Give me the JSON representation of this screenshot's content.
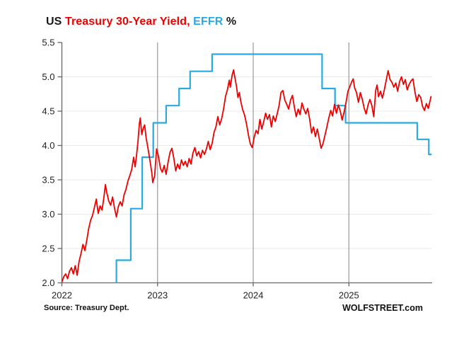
{
  "title": {
    "segments": [
      {
        "text": "US ",
        "color_key": "text"
      },
      {
        "text": "Treasury 30-Year Yield,",
        "color_key": "red"
      },
      {
        "text": " EFFR",
        "color_key": "blue"
      },
      {
        "text": " %",
        "color_key": "text"
      }
    ],
    "full_text": "US Treasury 30-Year Yield, EFFR %"
  },
  "footer": {
    "source": "Source: Treasury Dept.",
    "branding": "WOLFSTREET.com"
  },
  "colors": {
    "red": "#ec0000",
    "blue": "#29aae1",
    "text": "#1a1a1a",
    "axis": "#666666",
    "year_grid": "#999999",
    "h_grid": "#e8e8e8",
    "tick_label": "#222222"
  },
  "chart_data": {
    "type": "line",
    "title": "US Treasury 30-Year Yield, EFFR %",
    "xlabel": "",
    "ylabel": "",
    "x_range": [
      2022.0,
      2025.87
    ],
    "y_range": [
      2.0,
      5.5
    ],
    "x_ticks": [
      2022,
      2023,
      2024,
      2025
    ],
    "y_ticks": [
      2.0,
      2.5,
      3.0,
      3.5,
      4.0,
      4.5,
      5.0,
      5.5
    ],
    "grid": {
      "horizontal": true,
      "vertical_years": [
        2023,
        2024,
        2025
      ],
      "legend": "none"
    },
    "series": [
      {
        "name": "EFFR",
        "color_key": "blue",
        "line_width": 2.2,
        "style": "step-vertices",
        "points": [
          [
            2022.57,
            1.58
          ],
          [
            2022.57,
            2.33
          ],
          [
            2022.72,
            2.33
          ],
          [
            2022.72,
            3.08
          ],
          [
            2022.84,
            3.08
          ],
          [
            2022.84,
            3.83
          ],
          [
            2022.955,
            3.83
          ],
          [
            2022.955,
            4.33
          ],
          [
            2023.09,
            4.33
          ],
          [
            2023.09,
            4.58
          ],
          [
            2023.225,
            4.58
          ],
          [
            2023.225,
            4.83
          ],
          [
            2023.34,
            4.83
          ],
          [
            2023.34,
            5.08
          ],
          [
            2023.57,
            5.08
          ],
          [
            2023.57,
            5.33
          ],
          [
            2024.72,
            5.33
          ],
          [
            2024.72,
            4.83
          ],
          [
            2024.855,
            4.83
          ],
          [
            2024.855,
            4.58
          ],
          [
            2024.965,
            4.58
          ],
          [
            2024.965,
            4.33
          ],
          [
            2025.715,
            4.33
          ],
          [
            2025.715,
            4.09
          ],
          [
            2025.835,
            4.09
          ],
          [
            2025.835,
            3.87
          ],
          [
            2025.865,
            3.87
          ]
        ]
      },
      {
        "name": "US Treasury 30-Year Yield",
        "color_key": "red",
        "line_width": 1.8,
        "style": "line",
        "points": [
          [
            2022.0,
            2.01
          ],
          [
            2022.02,
            2.09
          ],
          [
            2022.04,
            2.13
          ],
          [
            2022.06,
            2.06
          ],
          [
            2022.08,
            2.17
          ],
          [
            2022.1,
            2.22
          ],
          [
            2022.12,
            2.13
          ],
          [
            2022.14,
            2.25
          ],
          [
            2022.16,
            2.11
          ],
          [
            2022.18,
            2.31
          ],
          [
            2022.2,
            2.43
          ],
          [
            2022.22,
            2.56
          ],
          [
            2022.24,
            2.47
          ],
          [
            2022.26,
            2.62
          ],
          [
            2022.28,
            2.79
          ],
          [
            2022.3,
            2.91
          ],
          [
            2022.32,
            2.98
          ],
          [
            2022.34,
            3.1
          ],
          [
            2022.36,
            3.22
          ],
          [
            2022.38,
            3.01
          ],
          [
            2022.4,
            3.12
          ],
          [
            2022.42,
            3.06
          ],
          [
            2022.44,
            3.25
          ],
          [
            2022.455,
            3.43
          ],
          [
            2022.47,
            3.31
          ],
          [
            2022.49,
            3.19
          ],
          [
            2022.51,
            3.13
          ],
          [
            2022.53,
            3.25
          ],
          [
            2022.55,
            3.09
          ],
          [
            2022.57,
            2.96
          ],
          [
            2022.59,
            3.11
          ],
          [
            2022.61,
            3.18
          ],
          [
            2022.63,
            3.12
          ],
          [
            2022.65,
            3.28
          ],
          [
            2022.67,
            3.36
          ],
          [
            2022.69,
            3.48
          ],
          [
            2022.71,
            3.56
          ],
          [
            2022.73,
            3.65
          ],
          [
            2022.75,
            3.83
          ],
          [
            2022.765,
            3.69
          ],
          [
            2022.78,
            3.85
          ],
          [
            2022.795,
            4.05
          ],
          [
            2022.81,
            4.32
          ],
          [
            2022.82,
            4.4
          ],
          [
            2022.835,
            4.16
          ],
          [
            2022.85,
            4.25
          ],
          [
            2022.865,
            4.3
          ],
          [
            2022.88,
            4.12
          ],
          [
            2022.9,
            3.96
          ],
          [
            2022.92,
            3.79
          ],
          [
            2022.94,
            3.6
          ],
          [
            2022.95,
            3.46
          ],
          [
            2022.97,
            3.56
          ],
          [
            2022.99,
            3.95
          ],
          [
            2023.01,
            3.84
          ],
          [
            2023.03,
            3.67
          ],
          [
            2023.05,
            3.61
          ],
          [
            2023.07,
            3.71
          ],
          [
            2023.09,
            3.58
          ],
          [
            2023.11,
            3.76
          ],
          [
            2023.13,
            3.9
          ],
          [
            2023.15,
            3.96
          ],
          [
            2023.17,
            3.81
          ],
          [
            2023.19,
            3.63
          ],
          [
            2023.21,
            3.73
          ],
          [
            2023.23,
            3.66
          ],
          [
            2023.25,
            3.79
          ],
          [
            2023.27,
            3.71
          ],
          [
            2023.29,
            3.77
          ],
          [
            2023.31,
            3.69
          ],
          [
            2023.33,
            3.81
          ],
          [
            2023.35,
            3.73
          ],
          [
            2023.37,
            3.89
          ],
          [
            2023.39,
            3.97
          ],
          [
            2023.41,
            3.85
          ],
          [
            2023.43,
            3.91
          ],
          [
            2023.45,
            3.82
          ],
          [
            2023.47,
            3.93
          ],
          [
            2023.49,
            3.87
          ],
          [
            2023.51,
            3.95
          ],
          [
            2023.53,
            4.06
          ],
          [
            2023.55,
            3.94
          ],
          [
            2023.57,
            4.03
          ],
          [
            2023.59,
            4.19
          ],
          [
            2023.61,
            4.27
          ],
          [
            2023.63,
            4.42
          ],
          [
            2023.65,
            4.3
          ],
          [
            2023.67,
            4.39
          ],
          [
            2023.69,
            4.53
          ],
          [
            2023.71,
            4.71
          ],
          [
            2023.73,
            4.81
          ],
          [
            2023.75,
            4.95
          ],
          [
            2023.76,
            4.85
          ],
          [
            2023.78,
            5.03
          ],
          [
            2023.795,
            5.1
          ],
          [
            2023.81,
            4.98
          ],
          [
            2023.825,
            4.86
          ],
          [
            2023.84,
            4.7
          ],
          [
            2023.855,
            4.77
          ],
          [
            2023.87,
            4.64
          ],
          [
            2023.89,
            4.52
          ],
          [
            2023.91,
            4.44
          ],
          [
            2023.93,
            4.31
          ],
          [
            2023.95,
            4.15
          ],
          [
            2023.97,
            4.02
          ],
          [
            2023.99,
            3.97
          ],
          [
            2024.01,
            4.12
          ],
          [
            2024.03,
            4.22
          ],
          [
            2024.05,
            4.17
          ],
          [
            2024.07,
            4.38
          ],
          [
            2024.09,
            4.24
          ],
          [
            2024.11,
            4.35
          ],
          [
            2024.13,
            4.47
          ],
          [
            2024.15,
            4.38
          ],
          [
            2024.17,
            4.45
          ],
          [
            2024.19,
            4.27
          ],
          [
            2024.21,
            4.43
          ],
          [
            2024.23,
            4.35
          ],
          [
            2024.25,
            4.46
          ],
          [
            2024.27,
            4.58
          ],
          [
            2024.29,
            4.77
          ],
          [
            2024.31,
            4.8
          ],
          [
            2024.33,
            4.66
          ],
          [
            2024.35,
            4.6
          ],
          [
            2024.37,
            4.53
          ],
          [
            2024.39,
            4.66
          ],
          [
            2024.41,
            4.73
          ],
          [
            2024.43,
            4.56
          ],
          [
            2024.45,
            4.42
          ],
          [
            2024.47,
            4.53
          ],
          [
            2024.49,
            4.45
          ],
          [
            2024.51,
            4.62
          ],
          [
            2024.53,
            4.53
          ],
          [
            2024.55,
            4.46
          ],
          [
            2024.57,
            4.54
          ],
          [
            2024.59,
            4.38
          ],
          [
            2024.61,
            4.18
          ],
          [
            2024.63,
            4.27
          ],
          [
            2024.65,
            4.13
          ],
          [
            2024.67,
            4.24
          ],
          [
            2024.69,
            4.1
          ],
          [
            2024.71,
            3.96
          ],
          [
            2024.73,
            4.03
          ],
          [
            2024.75,
            4.15
          ],
          [
            2024.77,
            4.27
          ],
          [
            2024.79,
            4.4
          ],
          [
            2024.81,
            4.51
          ],
          [
            2024.83,
            4.43
          ],
          [
            2024.85,
            4.6
          ],
          [
            2024.87,
            4.47
          ],
          [
            2024.89,
            4.59
          ],
          [
            2024.91,
            4.5
          ],
          [
            2024.93,
            4.37
          ],
          [
            2024.95,
            4.49
          ],
          [
            2024.97,
            4.63
          ],
          [
            2024.99,
            4.79
          ],
          [
            2025.01,
            4.86
          ],
          [
            2025.03,
            4.93
          ],
          [
            2025.045,
            4.97
          ],
          [
            2025.06,
            4.84
          ],
          [
            2025.08,
            4.77
          ],
          [
            2025.1,
            4.63
          ],
          [
            2025.12,
            4.77
          ],
          [
            2025.14,
            4.67
          ],
          [
            2025.16,
            4.54
          ],
          [
            2025.18,
            4.46
          ],
          [
            2025.2,
            4.59
          ],
          [
            2025.22,
            4.67
          ],
          [
            2025.24,
            4.58
          ],
          [
            2025.26,
            4.42
          ],
          [
            2025.28,
            4.8
          ],
          [
            2025.295,
            4.88
          ],
          [
            2025.31,
            4.71
          ],
          [
            2025.33,
            4.79
          ],
          [
            2025.35,
            4.69
          ],
          [
            2025.37,
            4.81
          ],
          [
            2025.39,
            4.95
          ],
          [
            2025.41,
            5.09
          ],
          [
            2025.43,
            4.96
          ],
          [
            2025.45,
            4.92
          ],
          [
            2025.47,
            4.85
          ],
          [
            2025.49,
            4.91
          ],
          [
            2025.51,
            4.79
          ],
          [
            2025.53,
            4.93
          ],
          [
            2025.55,
            5.0
          ],
          [
            2025.57,
            4.89
          ],
          [
            2025.59,
            4.96
          ],
          [
            2025.61,
            4.81
          ],
          [
            2025.63,
            4.89
          ],
          [
            2025.65,
            4.94
          ],
          [
            2025.67,
            4.97
          ],
          [
            2025.69,
            4.78
          ],
          [
            2025.71,
            4.64
          ],
          [
            2025.73,
            4.74
          ],
          [
            2025.75,
            4.7
          ],
          [
            2025.77,
            4.57
          ],
          [
            2025.79,
            4.51
          ],
          [
            2025.81,
            4.61
          ],
          [
            2025.83,
            4.54
          ],
          [
            2025.85,
            4.66
          ],
          [
            2025.86,
            4.72
          ]
        ]
      }
    ]
  }
}
